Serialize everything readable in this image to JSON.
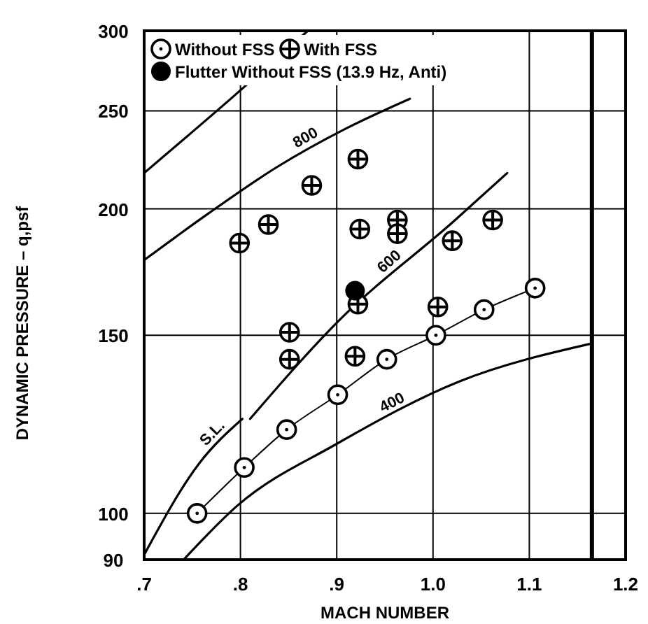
{
  "chart_data": {
    "type": "scatter",
    "xlabel": "MACH NUMBER",
    "ylabel": "DYNAMIC PRESSURE – q,psf",
    "log": "y",
    "grid": true,
    "legend": "top left",
    "xlim": [
      0.7,
      1.2
    ],
    "xticks": [
      {
        "value": 0.7,
        "label": ".7"
      },
      {
        "value": 0.8,
        "label": ".8"
      },
      {
        "value": 0.9,
        "label": ".9"
      },
      {
        "value": 1.0,
        "label": "1.0"
      },
      {
        "value": 1.1,
        "label": "1.1"
      },
      {
        "value": 1.2,
        "label": "1.2"
      }
    ],
    "ylim": [
      90,
      300
    ],
    "yticks": [
      90,
      100,
      150,
      200,
      250,
      300
    ],
    "ref_lines": [
      {
        "axis": "x",
        "value": 1.165,
        "color": "#000000"
      }
    ],
    "series": [
      {
        "name": "Without FSS",
        "type": "line",
        "marker": "circle",
        "color": "#000000",
        "x": [
          0.755,
          0.804,
          0.848,
          0.901,
          0.952,
          1.003,
          1.053,
          1.106
        ],
        "values": [
          100,
          111,
          121,
          131,
          142,
          150,
          159,
          167
        ]
      },
      {
        "name": "With FSS",
        "color": "#000000",
        "x": [
          0.799,
          0.829,
          0.874,
          0.922,
          0.924,
          0.963,
          0.963,
          1.02,
          1.062,
          0.922,
          1.005,
          0.851,
          0.851,
          0.919
        ],
        "values": [
          185,
          193,
          211,
          224,
          191,
          195,
          189,
          186,
          195,
          161,
          160,
          151,
          142,
          143
        ]
      },
      {
        "name": "Flutter Without FSS (13.9 Hz, Anti)",
        "marker": "circle",
        "color": "#000000",
        "x": [
          0.919
        ],
        "values": [
          166
        ]
      },
      {
        "name": "800",
        "type": "line",
        "marker": "none",
        "color": "#000000",
        "x": [
          0.7,
          0.767,
          0.838,
          0.909,
          0.976
        ],
        "values": [
          178,
          198,
          220,
          240,
          257
        ]
      },
      {
        "name": "600",
        "type": "line",
        "marker": "none",
        "color": "#000000",
        "x": [
          0.81,
          0.902,
          1.023,
          1.077
        ],
        "values": [
          124,
          155,
          195,
          217
        ]
      },
      {
        "name": "400",
        "type": "line",
        "marker": "none",
        "color": "#000000",
        "x": [
          0.741,
          0.798,
          0.899,
          1.027,
          1.162
        ],
        "values": [
          90,
          102,
          117,
          135,
          147
        ]
      },
      {
        "name": "S.L.",
        "type": "line",
        "marker": "none",
        "color": "#000000",
        "x": [
          0.7,
          0.757,
          0.802
        ],
        "values": [
          91,
          112,
          124
        ]
      },
      {
        "type": "line",
        "marker": "none",
        "color": "#000000",
        "x": [
          0.7,
          0.79,
          0.87
        ],
        "values": [
          217,
          257,
          300
        ]
      }
    ]
  }
}
